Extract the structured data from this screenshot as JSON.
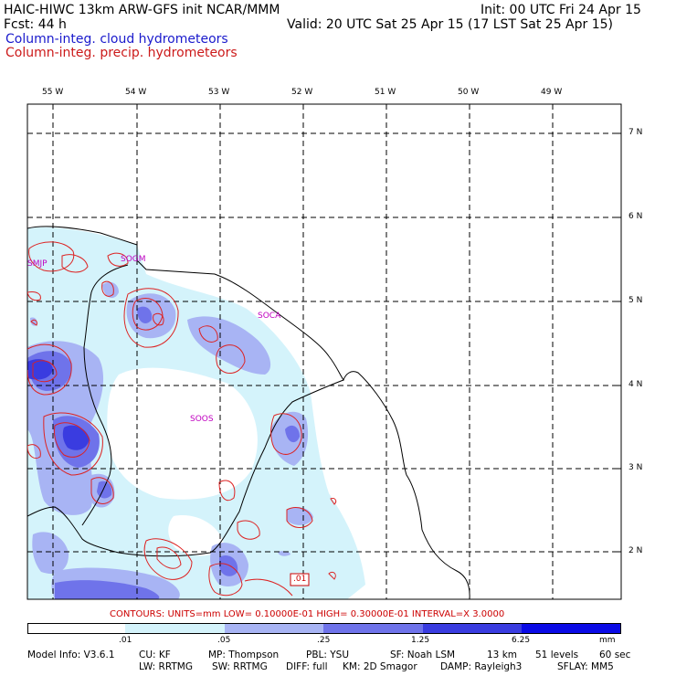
{
  "header": {
    "title_left": "HAIC-HIWC 13km ARW-GFS init   NCAR/MMM",
    "init": "Init: 00 UTC Fri 24 Apr 15",
    "fcst": "Fcst:   44 h",
    "valid": "Valid: 20 UTC Sat 25 Apr 15 (17 LST Sat 25 Apr 15)",
    "field1": "Column-integ. cloud hydrometeors",
    "field2": "Column-integ. precip. hydrometeors"
  },
  "colors": {
    "field1": "#1a1acc",
    "field2": "#cc1a1a",
    "shade_levels": [
      "#ffffff",
      "#d4f3fb",
      "#a8b4f4",
      "#6f73ea",
      "#3a3ce0",
      "#0a0ae6"
    ],
    "contour": "#dd2222",
    "station": "#c000c0"
  },
  "map": {
    "lon_labels": [
      "55 W",
      "54 W",
      "53 W",
      "52 W",
      "51 W",
      "50 W",
      "49 W"
    ],
    "lat_labels": [
      "7 N",
      "6 N",
      "5 N",
      "4 N",
      "3 N",
      "2 N"
    ],
    "stations": [
      "SMJP",
      "SOGM",
      "SOCA",
      "SOOS"
    ],
    "contour_label": ".01"
  },
  "contours_line": "CONTOURS:  UNITS=mm  LOW= 0.10000E-01  HIGH= 0.30000E-01  INTERVAL=X  3.0000",
  "colorbar": {
    "ticks": [
      ".01",
      ".05",
      ".25",
      "1.25",
      "6.25"
    ],
    "units": "mm"
  },
  "model_info": {
    "line1": [
      "Model Info: V3.6.1",
      "CU: KF",
      "MP: Thompson",
      "PBL: YSU",
      "SF: Noah LSM",
      "13 km",
      "51 levels",
      "60 sec"
    ],
    "line2": [
      "LW: RRTMG",
      "SW: RRTMG",
      "DIFF: full",
      "KM: 2D Smagor",
      "DAMP: Rayleigh3",
      "SFLAY: MM5"
    ]
  }
}
